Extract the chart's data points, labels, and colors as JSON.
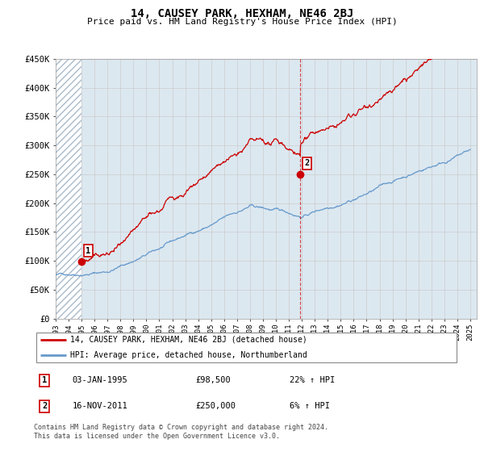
{
  "title": "14, CAUSEY PARK, HEXHAM, NE46 2BJ",
  "subtitle": "Price paid vs. HM Land Registry's House Price Index (HPI)",
  "legend_line1": "14, CAUSEY PARK, HEXHAM, NE46 2BJ (detached house)",
  "legend_line2": "HPI: Average price, detached house, Northumberland",
  "footnote": "Contains HM Land Registry data © Crown copyright and database right 2024.\nThis data is licensed under the Open Government Licence v3.0.",
  "sale1_label": "1",
  "sale1_date": "03-JAN-1995",
  "sale1_price": "£98,500",
  "sale1_hpi": "22% ↑ HPI",
  "sale2_label": "2",
  "sale2_date": "16-NOV-2011",
  "sale2_price": "£250,000",
  "sale2_hpi": "6% ↑ HPI",
  "ylim": [
    0,
    450000
  ],
  "yticks": [
    0,
    50000,
    100000,
    150000,
    200000,
    250000,
    300000,
    350000,
    400000,
    450000
  ],
  "ytick_labels": [
    "£0",
    "£50K",
    "£100K",
    "£150K",
    "£200K",
    "£250K",
    "£300K",
    "£350K",
    "£400K",
    "£450K"
  ],
  "xtick_years": [
    1993,
    1994,
    1995,
    1996,
    1997,
    1998,
    1999,
    2000,
    2001,
    2002,
    2003,
    2004,
    2005,
    2006,
    2007,
    2008,
    2009,
    2010,
    2011,
    2012,
    2013,
    2014,
    2015,
    2016,
    2017,
    2018,
    2019,
    2020,
    2021,
    2022,
    2023,
    2024,
    2025
  ],
  "sale1_year": 1995.01,
  "sale1_value": 98500,
  "sale2_year": 2011.88,
  "sale2_value": 250000,
  "hpi_color": "#6699cc",
  "price_color": "#cc0000",
  "bg_color": "#dce8f0",
  "grid_color": "#cccccc",
  "sale_marker_color": "#cc0000",
  "dashed_line_color": "#cc0000",
  "hatch_bg_color": "#ffffff",
  "hatch_edge_color": "#aabbcc"
}
